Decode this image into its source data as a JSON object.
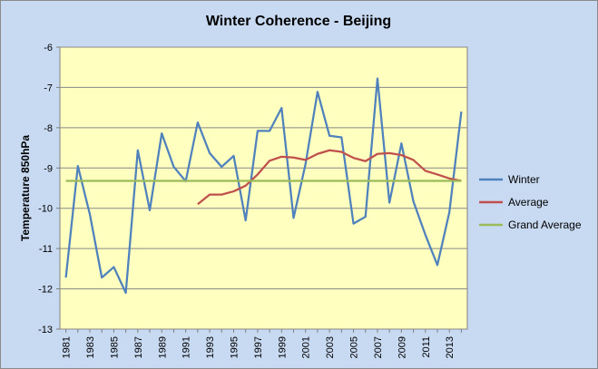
{
  "chart_data": {
    "type": "line",
    "title": "Winter Coherence - Beijing",
    "xlabel": "",
    "ylabel": "Temperature 850hPa",
    "ylim": [
      -13,
      -6
    ],
    "yticks": [
      -6,
      -7,
      -8,
      -9,
      -10,
      -11,
      -12,
      -13
    ],
    "xticks": [
      "1981",
      "1983",
      "1985",
      "1987",
      "1989",
      "1991",
      "1993",
      "1995",
      "1997",
      "1999",
      "2001",
      "2003",
      "2005",
      "2007",
      "2009",
      "2011",
      "2013"
    ],
    "x": [
      1981,
      1982,
      1983,
      1984,
      1985,
      1986,
      1987,
      1988,
      1989,
      1990,
      1991,
      1992,
      1993,
      1994,
      1995,
      1996,
      1997,
      1998,
      1999,
      2000,
      2001,
      2002,
      2003,
      2004,
      2005,
      2006,
      2007,
      2008,
      2009,
      2010,
      2011,
      2012,
      2013,
      2014
    ],
    "grid": "horizontal",
    "legend_position": "right",
    "series": [
      {
        "name": "Winter",
        "color": "#4f81bd",
        "values": [
          -11.72,
          -8.95,
          -10.15,
          -11.72,
          -11.46,
          -12.1,
          -8.56,
          -10.05,
          -8.14,
          -8.97,
          -9.33,
          -7.87,
          -8.63,
          -8.97,
          -8.7,
          -10.3,
          -8.08,
          -8.08,
          -7.51,
          -10.24,
          -8.9,
          -7.11,
          -8.2,
          -8.24,
          -10.38,
          -10.21,
          -6.78,
          -9.86,
          -8.39,
          -9.83,
          -10.66,
          -11.41,
          -10.1,
          -7.6
        ]
      },
      {
        "name": "Average",
        "color": "#c0504d",
        "values": [
          null,
          null,
          null,
          null,
          null,
          null,
          null,
          null,
          null,
          null,
          null,
          -9.9,
          -9.66,
          -9.66,
          -9.58,
          -9.44,
          -9.16,
          -8.82,
          -8.72,
          -8.74,
          -8.8,
          -8.65,
          -8.56,
          -8.6,
          -8.75,
          -8.83,
          -8.65,
          -8.63,
          -8.68,
          -8.8,
          -9.07,
          -9.16,
          -9.26,
          -9.32
        ]
      },
      {
        "name": "Grand Average",
        "color": "#9bbb59",
        "values": [
          -9.32,
          -9.32,
          -9.32,
          -9.32,
          -9.32,
          -9.32,
          -9.32,
          -9.32,
          -9.32,
          -9.32,
          -9.32,
          -9.32,
          -9.32,
          -9.32,
          -9.32,
          -9.32,
          -9.32,
          -9.32,
          -9.32,
          -9.32,
          -9.32,
          -9.32,
          -9.32,
          -9.32,
          -9.32,
          -9.32,
          -9.32,
          -9.32,
          -9.32,
          -9.32,
          -9.32,
          -9.32,
          -9.32,
          -9.32
        ]
      }
    ],
    "colors": {
      "plot_background": "#ffffc0",
      "chart_background": "#c8daf2",
      "gridline": "#888888"
    }
  }
}
